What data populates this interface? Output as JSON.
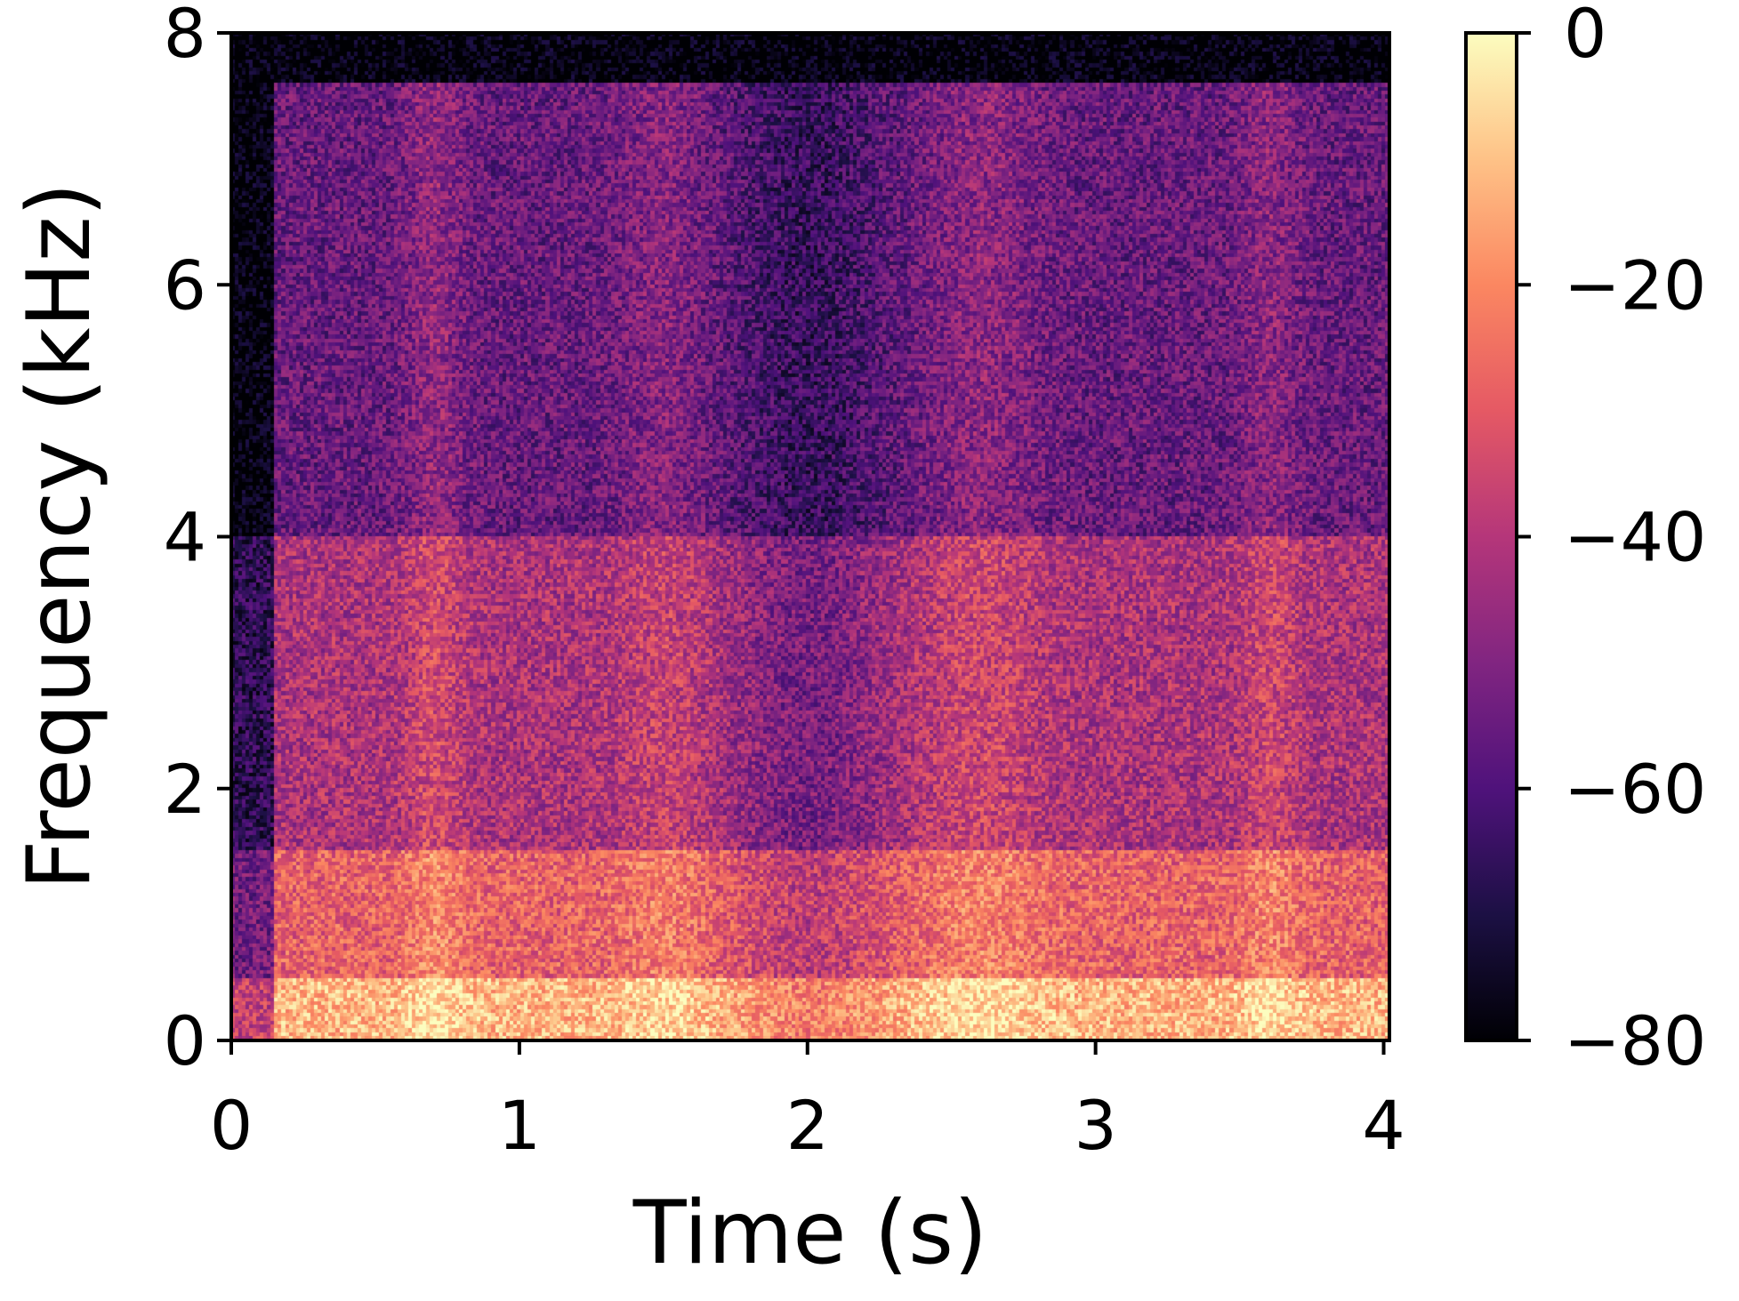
{
  "chart_data": {
    "type": "heatmap",
    "title": "",
    "xlabel": "Time (s)",
    "ylabel": "Frequency (kHz)",
    "xlim": [
      0,
      4.02
    ],
    "ylim": [
      0,
      8
    ],
    "xticks": [
      0,
      1,
      2,
      3,
      4
    ],
    "xtick_labels": [
      "0",
      "1",
      "2",
      "3",
      "4"
    ],
    "yticks": [
      0,
      2,
      4,
      6,
      8
    ],
    "ytick_labels": [
      "0",
      "2",
      "4",
      "6",
      "8"
    ],
    "grid": false,
    "colormap": "magma",
    "colorbar": {
      "range": [
        -80,
        0
      ],
      "ticks": [
        0,
        -20,
        -40,
        -60,
        -80
      ],
      "tick_labels": [
        "0",
        "−20",
        "−40",
        "−60",
        "−80"
      ],
      "colors": [
        "#000004",
        "#1c1044",
        "#4f127b",
        "#812581",
        "#b5367a",
        "#e55964",
        "#fb8761",
        "#fec287",
        "#fcfdbf"
      ]
    },
    "approx_levels_db": {
      "below_0.5kHz": -12,
      "0.5_to_1.5kHz": -28,
      "1.5_to_4kHz": -42,
      "4_to_7.6kHz": -55,
      "above_7.6kHz": -80
    }
  }
}
